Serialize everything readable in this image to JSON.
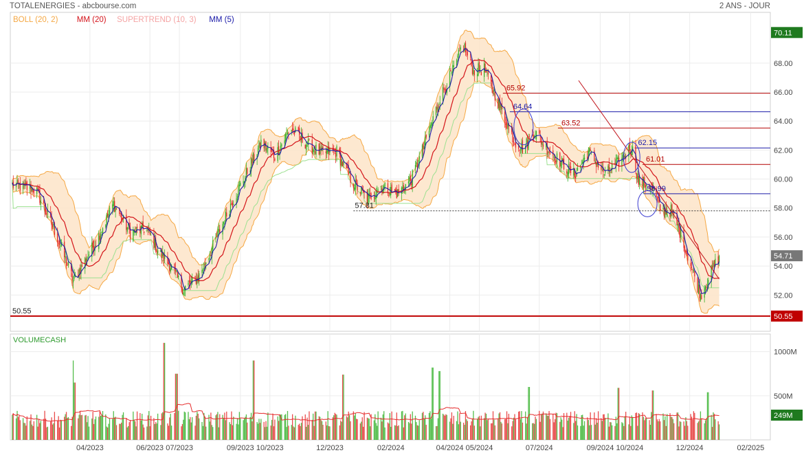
{
  "header": {
    "title": "TOTALENERGIES - abcbourse.com",
    "period": "2 ANS - JOUR"
  },
  "legend": {
    "items": [
      {
        "label": "BOLL (20, 2)",
        "color": "#f5a742"
      },
      {
        "label": "MM (20)",
        "color": "#d4141b"
      },
      {
        "label": "SUPERTREND (10, 3)",
        "color": "#f5a3a3"
      },
      {
        "label": "MM (5)",
        "color": "#1a1aa8"
      }
    ]
  },
  "volume_panel": {
    "label": "VOLUMECASH",
    "current_label": "249M"
  },
  "colors": {
    "up": "#34b22a",
    "down": "#e52b2b",
    "boll_fill": "#fde4c8",
    "boll_line": "#f5a742",
    "mm20": "#d4141b",
    "mm5": "#1a1aa8",
    "supertrend": "#9be08f",
    "support": "#c00000",
    "last_price_tag": "#777777",
    "top_price_tag": "#1f7a1f"
  },
  "chart_data": [
    {
      "type": "candlestick",
      "title": "TOTALENERGIES - abcbourse.com",
      "ylim": [
        49.5,
        71.5
      ],
      "y_ticks": [
        52,
        54,
        56,
        58,
        60,
        62,
        64,
        66,
        68
      ],
      "y_tick_labels": [
        "52.00",
        "54.00",
        "56.00",
        "58.00",
        "60.00",
        "62.00",
        "64.00",
        "66.00",
        "68.00"
      ],
      "x_tick_labels": [
        "04/2023",
        "06/2023",
        "07/2023",
        "09/2023",
        "10/2023",
        "12/2023",
        "02/2024",
        "04/2024",
        "05/2024",
        "07/2024",
        "09/2024",
        "10/2024",
        "12/2024",
        "02/2025"
      ],
      "x_tick_dates": [
        "2023-04-01",
        "2023-06-01",
        "2023-07-01",
        "2023-09-01",
        "2023-10-01",
        "2023-12-01",
        "2024-02-01",
        "2024-04-01",
        "2024-05-01",
        "2024-07-01",
        "2024-09-01",
        "2024-10-01",
        "2024-12-01",
        "2025-02-01"
      ],
      "x_start": "2023-01-10",
      "x_end": "2025-02-21",
      "price_key_points": [
        {
          "date": "2023-01-12",
          "close": 59.6
        },
        {
          "date": "2023-02-05",
          "close": 59.3
        },
        {
          "date": "2023-02-25",
          "close": 56.3
        },
        {
          "date": "2023-03-15",
          "close": 53.0
        },
        {
          "date": "2023-04-08",
          "close": 55.8
        },
        {
          "date": "2023-04-25",
          "close": 58.3
        },
        {
          "date": "2023-05-12",
          "close": 56.3
        },
        {
          "date": "2023-05-28",
          "close": 56.6
        },
        {
          "date": "2023-06-10",
          "close": 55.0
        },
        {
          "date": "2023-06-22",
          "close": 54.0
        },
        {
          "date": "2023-07-05",
          "close": 52.4
        },
        {
          "date": "2023-07-20",
          "close": 53.2
        },
        {
          "date": "2023-08-05",
          "close": 55.5
        },
        {
          "date": "2023-08-22",
          "close": 58.2
        },
        {
          "date": "2023-09-10",
          "close": 60.8
        },
        {
          "date": "2023-09-22",
          "close": 62.5
        },
        {
          "date": "2023-10-06",
          "close": 61.6
        },
        {
          "date": "2023-10-22",
          "close": 63.5
        },
        {
          "date": "2023-11-08",
          "close": 62.4
        },
        {
          "date": "2023-11-22",
          "close": 61.8
        },
        {
          "date": "2023-12-08",
          "close": 61.9
        },
        {
          "date": "2023-12-22",
          "close": 60.0
        },
        {
          "date": "2024-01-08",
          "close": 58.6
        },
        {
          "date": "2024-01-22",
          "close": 59.5
        },
        {
          "date": "2024-02-08",
          "close": 59.0
        },
        {
          "date": "2024-02-22",
          "close": 60.0
        },
        {
          "date": "2024-03-06",
          "close": 62.3
        },
        {
          "date": "2024-03-22",
          "close": 65.6
        },
        {
          "date": "2024-04-08",
          "close": 68.0
        },
        {
          "date": "2024-04-14",
          "close": 69.4
        },
        {
          "date": "2024-04-25",
          "close": 67.5
        },
        {
          "date": "2024-05-06",
          "close": 67.6
        },
        {
          "date": "2024-05-22",
          "close": 65.0
        },
        {
          "date": "2024-06-06",
          "close": 62.6
        },
        {
          "date": "2024-06-15",
          "close": 62.1
        },
        {
          "date": "2024-06-26",
          "close": 63.3
        },
        {
          "date": "2024-07-08",
          "close": 62.2
        },
        {
          "date": "2024-07-22",
          "close": 61.2
        },
        {
          "date": "2024-08-06",
          "close": 60.3
        },
        {
          "date": "2024-08-20",
          "close": 61.9
        },
        {
          "date": "2024-09-06",
          "close": 60.3
        },
        {
          "date": "2024-09-22",
          "close": 61.3
        },
        {
          "date": "2024-10-03",
          "close": 62.3
        },
        {
          "date": "2024-10-10",
          "close": 59.8
        },
        {
          "date": "2024-10-22",
          "close": 59.6
        },
        {
          "date": "2024-11-02",
          "close": 57.8
        },
        {
          "date": "2024-11-12",
          "close": 57.8
        },
        {
          "date": "2024-11-22",
          "close": 56.2
        },
        {
          "date": "2024-12-02",
          "close": 54.1
        },
        {
          "date": "2024-12-12",
          "close": 52.0
        },
        {
          "date": "2024-12-20",
          "close": 53.2
        },
        {
          "date": "2024-12-31",
          "close": 54.71
        }
      ],
      "price_tags": [
        {
          "label": "70.11",
          "value": 70.11,
          "kind": "top"
        },
        {
          "label": "54.71",
          "value": 54.71,
          "kind": "last"
        },
        {
          "label": "50.55",
          "value": 50.55,
          "kind": "support"
        }
      ],
      "support_line": {
        "value": 50.55,
        "label": "50.55"
      },
      "dotted_level": {
        "value": 57.81,
        "label": "57.81",
        "date": "2024-01-15"
      },
      "annotations": [
        {
          "label": "65.92",
          "value": 65.92,
          "color": "#b30000",
          "date": "2024-05-25"
        },
        {
          "label": "64.64",
          "value": 64.64,
          "color": "#1a1aa8",
          "date": "2024-06-01"
        },
        {
          "label": "63.52",
          "value": 63.52,
          "color": "#b30000",
          "date": "2024-07-20"
        },
        {
          "label": "62.15",
          "value": 62.15,
          "color": "#1a1aa8",
          "date": "2024-10-06"
        },
        {
          "label": "61.01",
          "value": 61.01,
          "color": "#b30000",
          "date": "2024-10-14"
        },
        {
          "label": "58.99",
          "value": 58.99,
          "color": "#1a1aa8",
          "date": "2024-10-15"
        }
      ],
      "trendline": {
        "from": {
          "date": "2024-08-10",
          "value": 66.8
        },
        "to": {
          "date": "2024-12-31",
          "value": 53.1
        }
      }
    },
    {
      "type": "bar",
      "title": "VOLUMECASH",
      "ylim": [
        0,
        1200
      ],
      "y_ticks": [
        500,
        1000
      ],
      "y_tick_labels": [
        "500M",
        "1000M"
      ],
      "last_value": 249,
      "spikes": [
        {
          "date": "2023-03-16",
          "value": 900
        },
        {
          "date": "2023-03-17",
          "value": 650
        },
        {
          "date": "2023-06-16",
          "value": 1100
        },
        {
          "date": "2023-06-28",
          "value": 750
        },
        {
          "date": "2023-09-15",
          "value": 900
        },
        {
          "date": "2023-12-15",
          "value": 740
        },
        {
          "date": "2024-03-15",
          "value": 820
        },
        {
          "date": "2024-03-22",
          "value": 780
        },
        {
          "date": "2024-06-21",
          "value": 600
        },
        {
          "date": "2024-09-20",
          "value": 590
        },
        {
          "date": "2024-10-25",
          "value": 560
        },
        {
          "date": "2024-12-20",
          "value": 540
        }
      ]
    }
  ]
}
